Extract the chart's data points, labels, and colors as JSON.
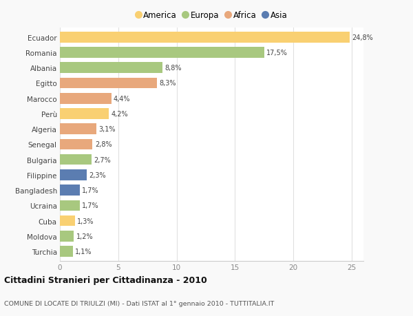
{
  "countries": [
    "Ecuador",
    "Romania",
    "Albania",
    "Egitto",
    "Marocco",
    "Perù",
    "Algeria",
    "Senegal",
    "Bulgaria",
    "Filippine",
    "Bangladesh",
    "Ucraina",
    "Cuba",
    "Moldova",
    "Turchia"
  ],
  "values": [
    24.8,
    17.5,
    8.8,
    8.3,
    4.4,
    4.2,
    3.1,
    2.8,
    2.7,
    2.3,
    1.7,
    1.7,
    1.3,
    1.2,
    1.1
  ],
  "labels": [
    "24,8%",
    "17,5%",
    "8,8%",
    "8,3%",
    "4,4%",
    "4,2%",
    "3,1%",
    "2,8%",
    "2,7%",
    "2,3%",
    "1,7%",
    "1,7%",
    "1,3%",
    "1,2%",
    "1,1%"
  ],
  "continents": [
    "America",
    "Europa",
    "Europa",
    "Africa",
    "Africa",
    "America",
    "Africa",
    "Africa",
    "Europa",
    "Asia",
    "Asia",
    "Europa",
    "America",
    "Europa",
    "Europa"
  ],
  "colors": {
    "America": "#F9D072",
    "Europa": "#A8C87F",
    "Africa": "#E8A87C",
    "Asia": "#5B7DB1"
  },
  "legend_order": [
    "America",
    "Europa",
    "Africa",
    "Asia"
  ],
  "title": "Cittadini Stranieri per Cittadinanza - 2010",
  "subtitle": "COMUNE DI LOCATE DI TRIULZI (MI) - Dati ISTAT al 1° gennaio 2010 - TUTTITALIA.IT",
  "xlim": [
    0,
    26
  ],
  "xticks": [
    0,
    5,
    10,
    15,
    20,
    25
  ],
  "background_color": "#f9f9f9",
  "plot_bg": "#ffffff",
  "grid_color": "#e0e0e0"
}
